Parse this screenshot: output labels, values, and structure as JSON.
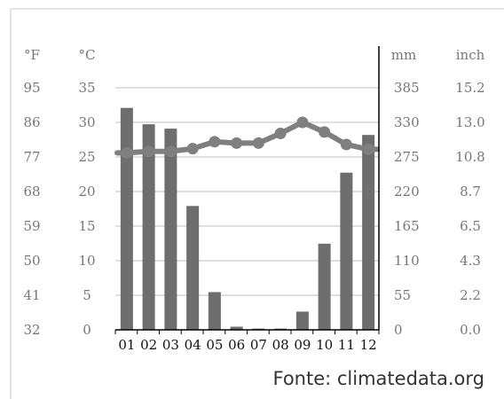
{
  "chart_data": {
    "type": "bar+line",
    "categories": [
      "01",
      "02",
      "03",
      "04",
      "05",
      "06",
      "07",
      "08",
      "09",
      "10",
      "11",
      "12"
    ],
    "series": [
      {
        "type": "bar",
        "axis": "right",
        "values": [
          353,
          327,
          320,
          197,
          60,
          5,
          2,
          2,
          29,
          137,
          250,
          310
        ]
      },
      {
        "type": "line",
        "axis": "left",
        "values": [
          25.6,
          25.8,
          25.8,
          26.2,
          27.2,
          27.0,
          27.0,
          28.4,
          30.0,
          28.6,
          26.8,
          26.1
        ]
      }
    ],
    "left_axis": {
      "unit_f": "°F",
      "unit_c": "°C",
      "ticks_f": [
        "95",
        "86",
        "77",
        "68",
        "59",
        "50",
        "41",
        "32"
      ],
      "ticks_c": [
        "35",
        "30",
        "25",
        "20",
        "15",
        "10",
        "5",
        "0"
      ],
      "ylim": [
        0,
        35
      ]
    },
    "right_axis": {
      "unit_mm": "mm",
      "unit_inch": "inch",
      "ticks_mm": [
        "385",
        "330",
        "275",
        "220",
        "165",
        "110",
        "55",
        "0"
      ],
      "ticks_inch": [
        "15.2",
        "13.0",
        "10.8",
        "8.7",
        "6.5",
        "4.3",
        "2.2",
        "0.0"
      ],
      "ylim": [
        0,
        385
      ]
    },
    "grid": true,
    "source": "Fonte: climatedata.org",
    "colors": {
      "bars": "#6e6e6e",
      "line": "#7f7f7f",
      "grid": "#bfbfbf",
      "axis": "#000000"
    }
  }
}
